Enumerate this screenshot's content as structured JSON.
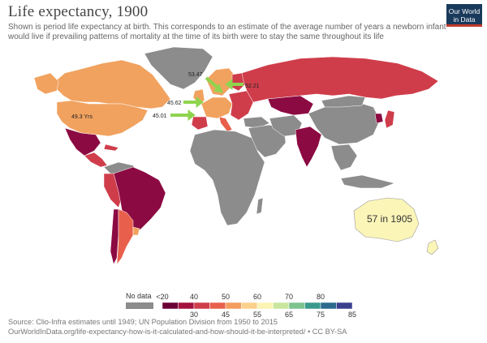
{
  "title": "Life expectancy, 1900",
  "subtitle": "Shown is period life expectancy at birth. This corresponds to an estimate of the average number of years a newborn infant would live if prevailing patterns of mortality at the time of its birth were to stay the same throughout its life",
  "logo": {
    "line1": "Our World",
    "line2": "in Data"
  },
  "annotations": {
    "usa": "49.3 Yrs",
    "label_5347": "53.47",
    "label_5221": "52.21",
    "label_4562": "45.62",
    "label_4501": "45.01",
    "australia": "57 in 1905"
  },
  "legend": {
    "no_data_label": "No data",
    "no_data_color": "#8c8c8c",
    "tick_labels_top": [
      "<20",
      "40",
      "50",
      "60",
      "70",
      "80"
    ],
    "tick_labels_bottom": [
      "30",
      "45",
      "55",
      "65",
      "75",
      "85"
    ],
    "bins": [
      {
        "color": "#6a0035"
      },
      {
        "color": "#a4123e"
      },
      {
        "color": "#cf3d4b"
      },
      {
        "color": "#e8604c"
      },
      {
        "color": "#f39d5f"
      },
      {
        "color": "#fbd08a"
      },
      {
        "color": "#fbf4b2"
      },
      {
        "color": "#c8e69d"
      },
      {
        "color": "#7dc48f"
      },
      {
        "color": "#3a9a8e"
      },
      {
        "color": "#2b6a8e"
      },
      {
        "color": "#3b3f8f"
      }
    ]
  },
  "colors": {
    "no_data": "#8c8c8c",
    "very_low": "#8c0a42",
    "low": "#cf3d4b",
    "mid": "#f1a25f",
    "australia": "#fbf5b8",
    "arrow": "#8fd44e"
  },
  "footer": {
    "source": "Source: Clio-Infra estimates until 1949; UN Population Division from 1950 to 2015",
    "url": "OurWorldInData.org/life-expectancy-how-is-it-calculated-and-how-should-it-be-interpreted/ • CC BY-SA"
  }
}
